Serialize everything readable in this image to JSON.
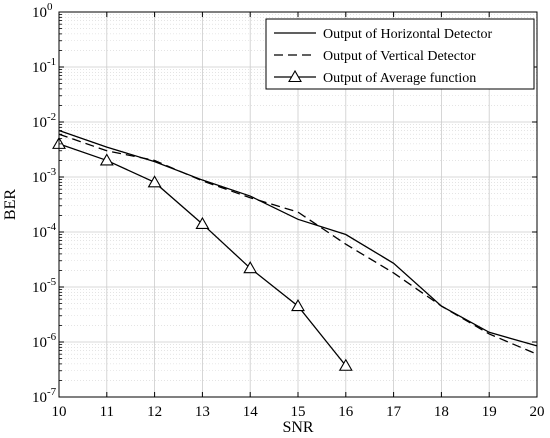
{
  "chart_data": {
    "type": "line",
    "xlabel": "SNR",
    "ylabel": "BER",
    "xlim": [
      10,
      20
    ],
    "ylim": [
      1e-07,
      1
    ],
    "yscale": "log",
    "grid": "major and minor",
    "legend_position": "top-right",
    "x_ticks": [
      "10",
      "11",
      "12",
      "13",
      "14",
      "15",
      "16",
      "17",
      "18",
      "19",
      "20"
    ],
    "y_ticks": [
      {
        "exp": "-7",
        "value": 1e-07
      },
      {
        "exp": "-6",
        "value": 1e-06
      },
      {
        "exp": "-5",
        "value": 1e-05
      },
      {
        "exp": "-4",
        "value": 0.0001
      },
      {
        "exp": "-3",
        "value": 0.001
      },
      {
        "exp": "-2",
        "value": 0.01
      },
      {
        "exp": "-1",
        "value": 0.1
      },
      {
        "exp": "0",
        "value": 1
      }
    ],
    "y_tick_base": "10",
    "series": [
      {
        "name": "Output of Horizontal Detector",
        "style": "solid",
        "marker": "none",
        "color": "#000000",
        "x": [
          10,
          11,
          12,
          13,
          14,
          15,
          16,
          17,
          18,
          19,
          20
        ],
        "y": [
          0.007,
          0.0035,
          0.0019,
          0.00088,
          0.00045,
          0.00017,
          9e-05,
          2.7e-05,
          4.5e-06,
          1.5e-06,
          8.5e-07
        ]
      },
      {
        "name": "Output of Vertical Detector",
        "style": "dashed",
        "marker": "none",
        "color": "#000000",
        "x": [
          10,
          11,
          12,
          13,
          14,
          15,
          16,
          17,
          18,
          19,
          20
        ],
        "y": [
          0.006,
          0.003,
          0.002,
          0.00085,
          0.00042,
          0.00023,
          6e-05,
          1.8e-05,
          4.5e-06,
          1.4e-06,
          6e-07
        ]
      },
      {
        "name": "Output of Average function",
        "style": "solid",
        "marker": "triangle",
        "color": "#000000",
        "x": [
          10,
          11,
          12,
          13,
          14,
          15,
          16
        ],
        "y": [
          0.004,
          0.002,
          0.0008,
          0.00014,
          2.2e-05,
          4.5e-06,
          3.7e-07
        ]
      }
    ]
  }
}
